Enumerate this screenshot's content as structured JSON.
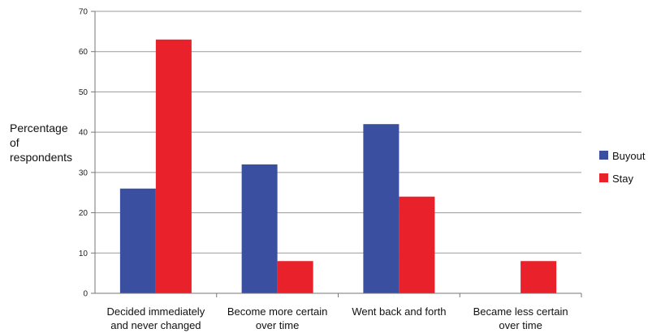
{
  "chart_data": {
    "type": "bar",
    "categories": [
      [
        "Decided immediately",
        "and never changed"
      ],
      [
        "Become more certain",
        "over time"
      ],
      [
        "Went back and forth"
      ],
      [
        "Became less certain",
        "over time"
      ]
    ],
    "series": [
      {
        "name": "Buyout",
        "values": [
          26,
          32,
          42,
          0
        ],
        "color": "#3a4fa0"
      },
      {
        "name": "Stay",
        "values": [
          63,
          8,
          24,
          8
        ],
        "color": "#e8212b"
      }
    ],
    "ylabel": [
      "Percentage",
      "of",
      "respondents"
    ],
    "ylim": [
      0,
      70
    ],
    "yticks": [
      0,
      10,
      20,
      30,
      40,
      50,
      60,
      70
    ],
    "grid": true,
    "legend": "right"
  }
}
